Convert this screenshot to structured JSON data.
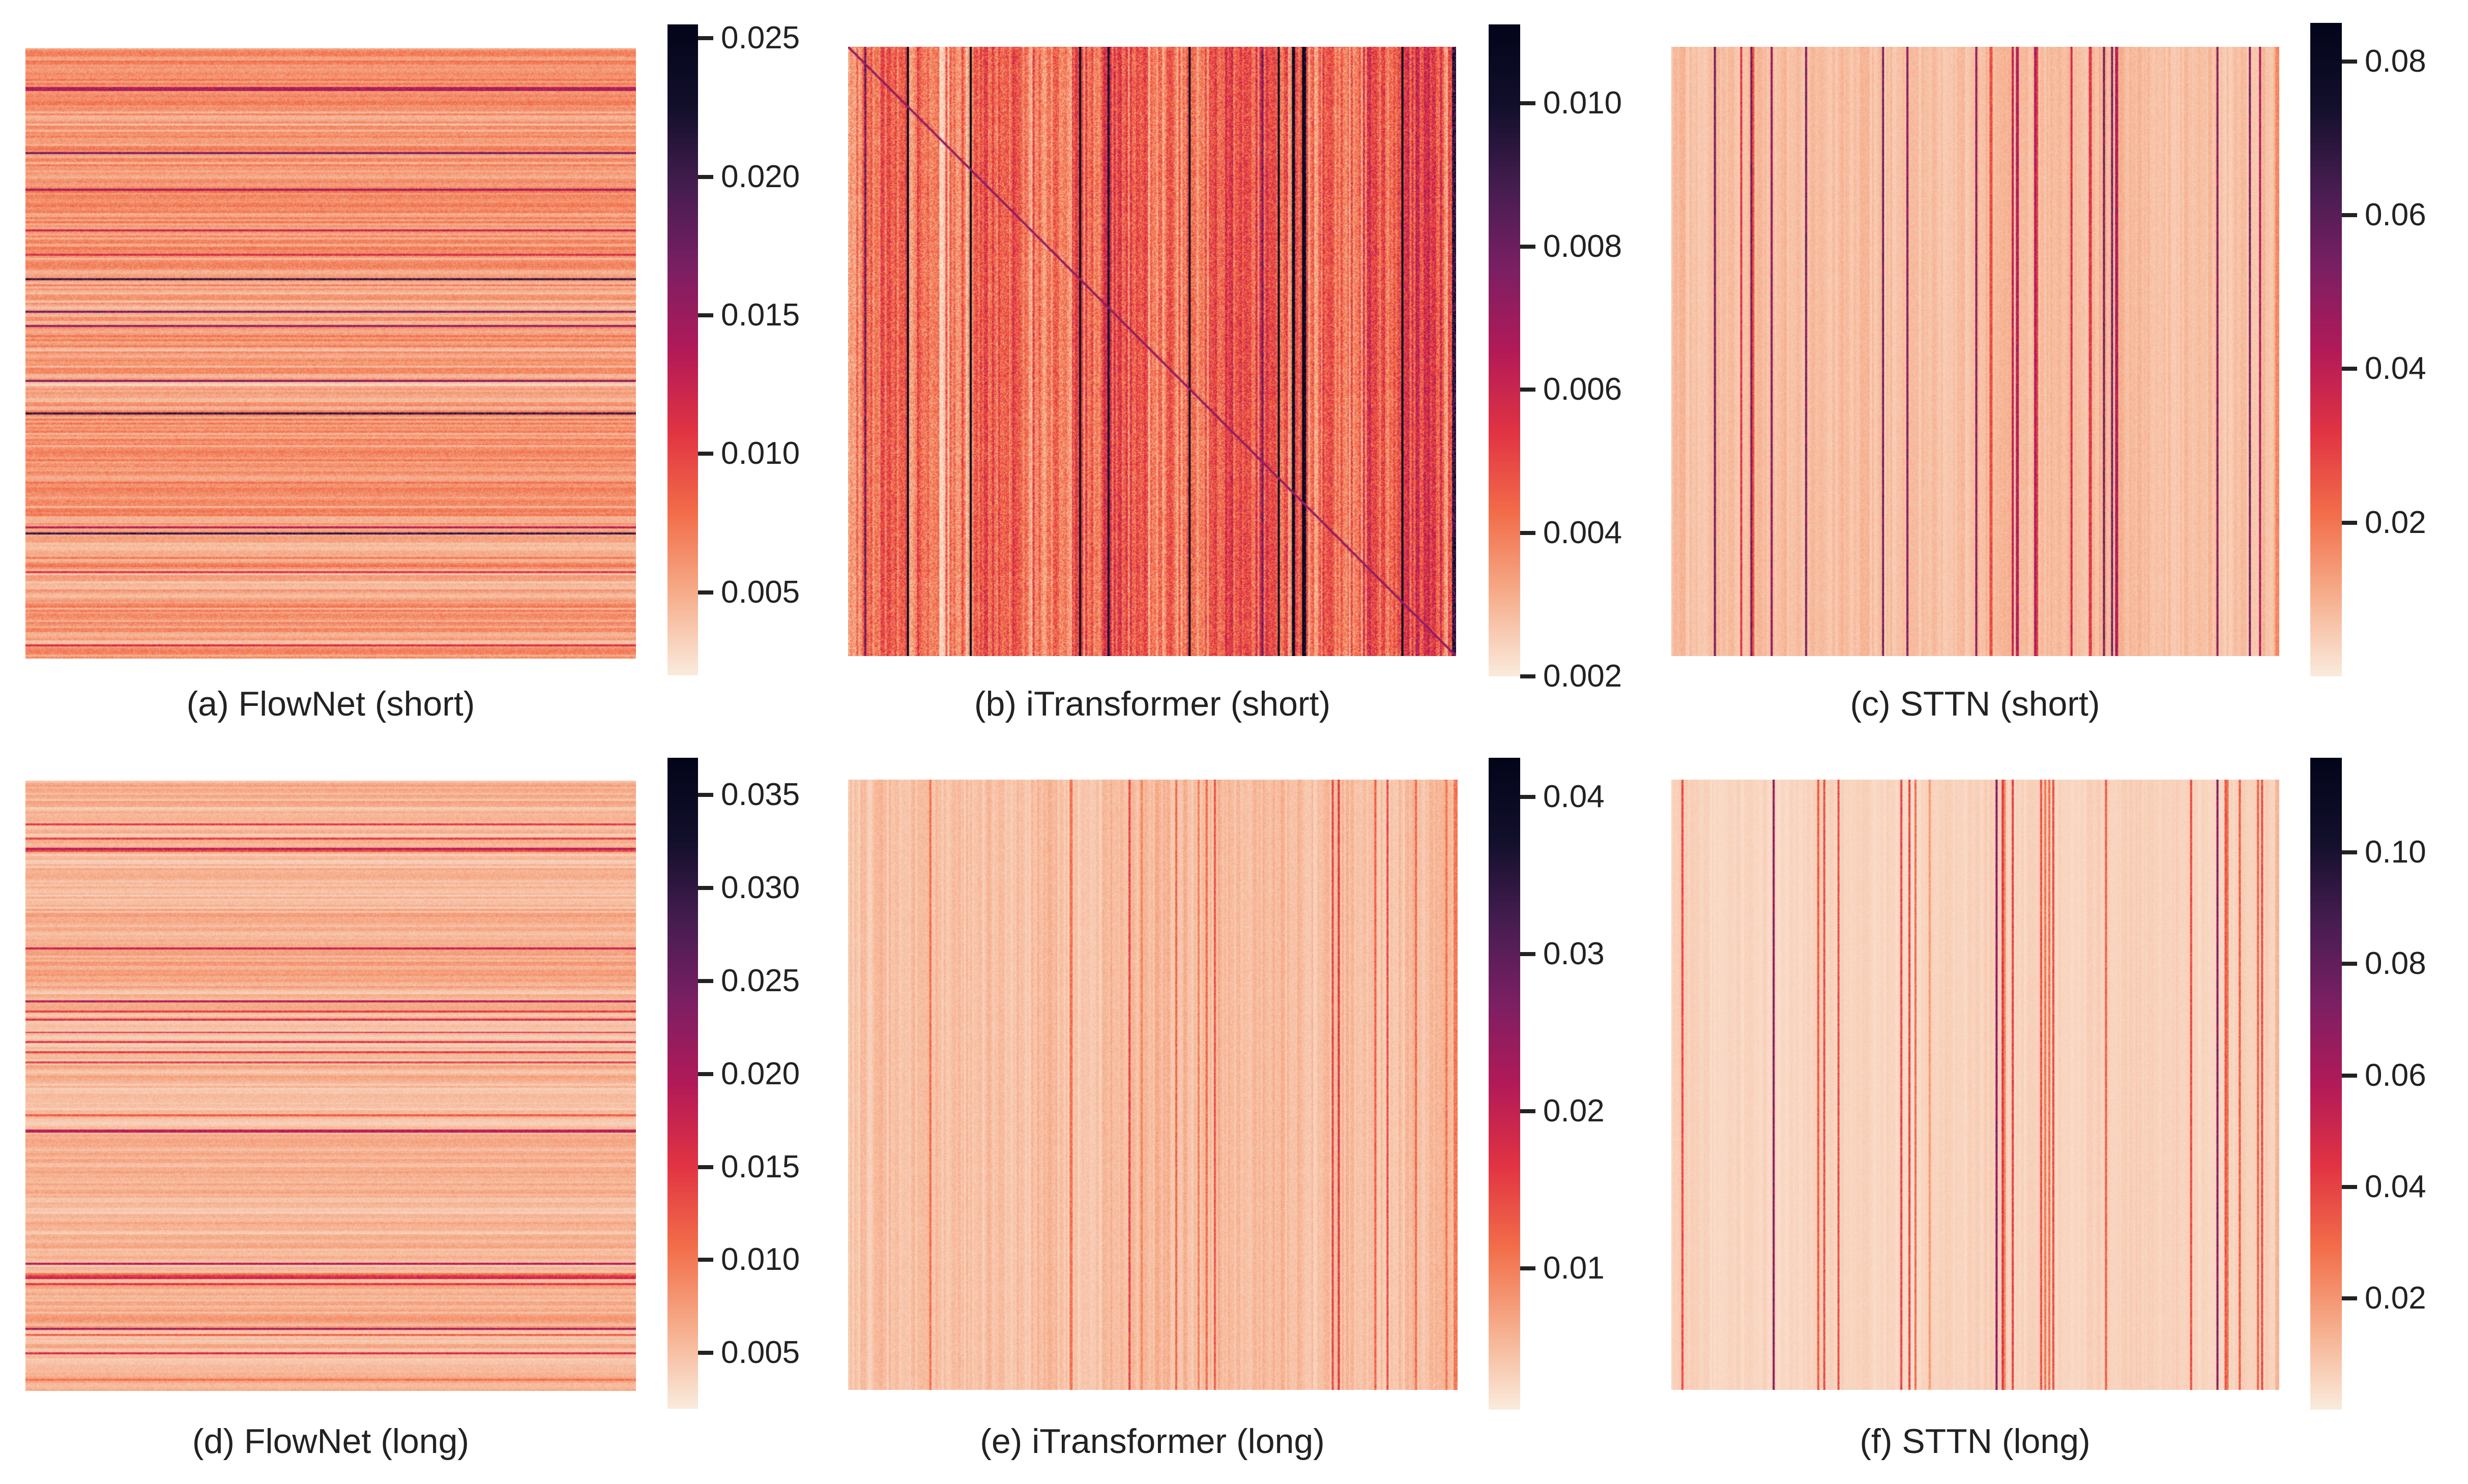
{
  "chart_data": [
    {
      "id": "a",
      "type": "heatmap",
      "title": "(a) FlowNet (short)",
      "model": "FlowNet",
      "setting": "short",
      "pattern": "horizontal-stripes",
      "colormap": "rocket",
      "colorbar": {
        "min": 0.002,
        "max": 0.0255,
        "ticks": [
          0.005,
          0.01,
          0.015,
          0.02,
          0.025
        ],
        "tick_labels": [
          "0.005",
          "0.010",
          "0.015",
          "0.020",
          "0.025"
        ]
      },
      "typical_value": 0.0058
    },
    {
      "id": "b",
      "type": "heatmap",
      "title": "(b) iTransformer (short)",
      "model": "iTransformer",
      "setting": "short",
      "pattern": "vertical-stripes-diagonal",
      "colormap": "rocket",
      "colorbar": {
        "min": 0.002,
        "max": 0.0111,
        "ticks": [
          0.002,
          0.004,
          0.006,
          0.008,
          0.01
        ],
        "tick_labels": [
          "0.002",
          "0.004",
          "0.006",
          "0.008",
          "0.010"
        ]
      },
      "typical_value": 0.0045
    },
    {
      "id": "c",
      "type": "heatmap",
      "title": "(c) STTN (short)",
      "model": "STTN",
      "setting": "short",
      "pattern": "vertical-stripes-sparse",
      "colormap": "rocket",
      "colorbar": {
        "min": 0.0,
        "max": 0.085,
        "ticks": [
          0.02,
          0.04,
          0.06,
          0.08
        ],
        "tick_labels": [
          "0.02",
          "0.04",
          "0.06",
          "0.08"
        ]
      },
      "typical_value": 0.008
    },
    {
      "id": "d",
      "type": "heatmap",
      "title": "(d) FlowNet (long)",
      "model": "FlowNet",
      "setting": "long",
      "pattern": "horizontal-stripes",
      "colormap": "rocket",
      "colorbar": {
        "min": 0.002,
        "max": 0.037,
        "ticks": [
          0.005,
          0.01,
          0.015,
          0.02,
          0.025,
          0.03,
          0.035
        ],
        "tick_labels": [
          "0.005",
          "0.010",
          "0.015",
          "0.020",
          "0.025",
          "0.030",
          "0.035"
        ]
      },
      "typical_value": 0.0055
    },
    {
      "id": "e",
      "type": "heatmap",
      "title": "(e) iTransformer (long)",
      "model": "iTransformer",
      "setting": "long",
      "pattern": "vertical-stripes",
      "colormap": "rocket",
      "colorbar": {
        "min": 0.001,
        "max": 0.0425,
        "ticks": [
          0.01,
          0.02,
          0.03,
          0.04
        ],
        "tick_labels": [
          "0.01",
          "0.02",
          "0.03",
          "0.04"
        ]
      },
      "typical_value": 0.005
    },
    {
      "id": "f",
      "type": "heatmap",
      "title": "(f) STTN (long)",
      "model": "STTN",
      "setting": "long",
      "pattern": "vertical-stripes-sparse",
      "colormap": "rocket",
      "colorbar": {
        "min": 0.0,
        "max": 0.117,
        "ticks": [
          0.02,
          0.04,
          0.06,
          0.08,
          0.1
        ],
        "tick_labels": [
          "0.02",
          "0.04",
          "0.06",
          "0.08",
          "0.10"
        ]
      },
      "typical_value": 0.006
    }
  ],
  "colors": {
    "background": "#ffffff",
    "text": "#222222",
    "colormap_stops": [
      "#faebdd",
      "#f6ad8b",
      "#f26d49",
      "#e13343",
      "#b21a58",
      "#7b1f63",
      "#461d50",
      "#120f2b",
      "#03051a"
    ]
  }
}
